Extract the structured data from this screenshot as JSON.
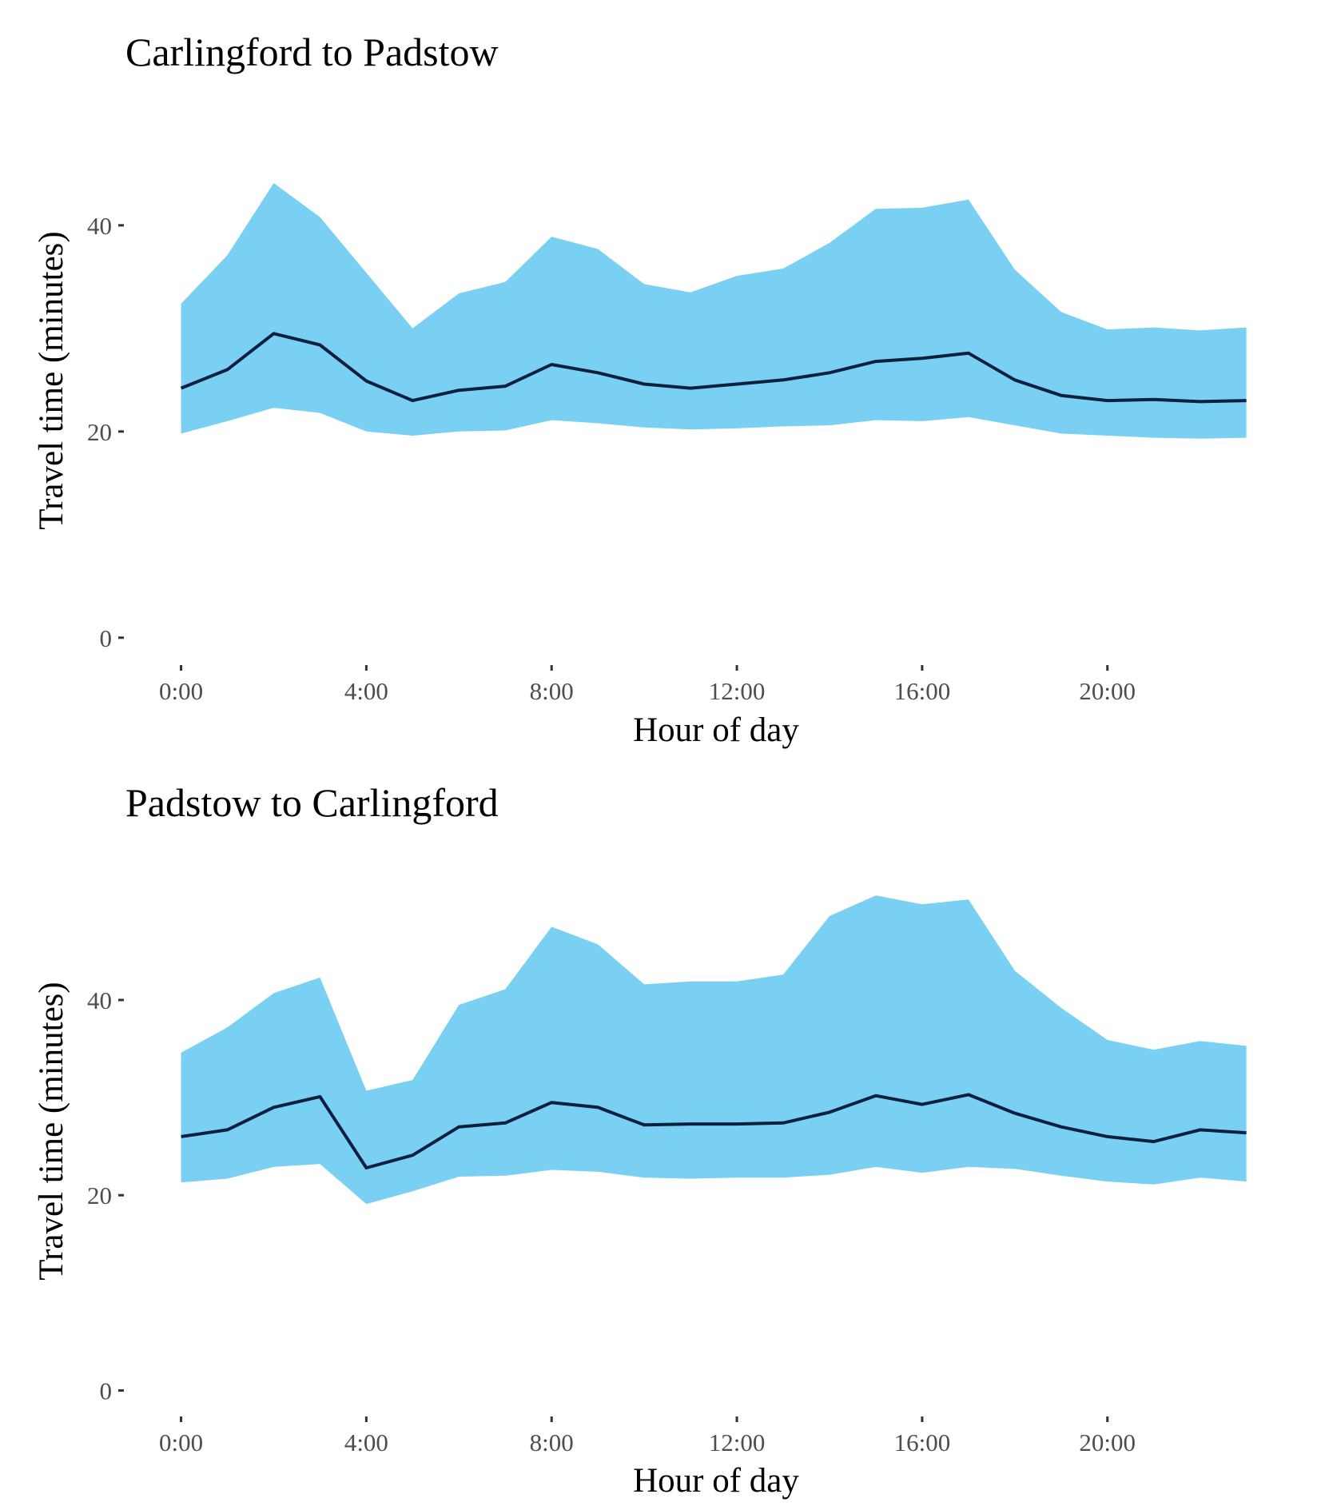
{
  "chart_data": [
    {
      "type": "area",
      "title": "Carlingford to Padstow",
      "xlabel": "Hour of day",
      "ylabel": "Travel time (minutes)",
      "x": [
        0,
        1,
        2,
        3,
        4,
        5,
        6,
        7,
        8,
        9,
        10,
        11,
        12,
        13,
        14,
        15,
        16,
        17,
        18,
        19,
        20,
        21,
        22,
        23
      ],
      "xticks": [
        0,
        4,
        8,
        12,
        16,
        20
      ],
      "xtick_labels": [
        "0:00",
        "4:00",
        "8:00",
        "12:00",
        "16:00",
        "20:00"
      ],
      "yticks": [
        0,
        20,
        40
      ],
      "ytick_labels": [
        "0",
        "20",
        "40"
      ],
      "xlim": [
        -1.2,
        23.3
      ],
      "ylim": [
        -2.5,
        51
      ],
      "grid": false,
      "colors": {
        "band": "#79d0f3",
        "line": "#0b1f3f"
      },
      "series": [
        {
          "role": "upper",
          "values": [
            32.4,
            37.1,
            44.1,
            40.8,
            35.4,
            30.0,
            33.4,
            34.5,
            38.9,
            37.7,
            34.3,
            33.5,
            35.1,
            35.8,
            38.3,
            41.6,
            41.7,
            42.5,
            35.7,
            31.6,
            29.9,
            30.1,
            29.8,
            30.1
          ]
        },
        {
          "role": "median",
          "values": [
            24.2,
            26.0,
            29.5,
            28.4,
            24.9,
            23.0,
            24.0,
            24.4,
            26.5,
            25.7,
            24.6,
            24.2,
            24.6,
            25.0,
            25.7,
            26.8,
            27.1,
            27.6,
            25.0,
            23.5,
            23.0,
            23.1,
            22.9,
            23.0
          ]
        },
        {
          "role": "lower",
          "values": [
            19.8,
            21.0,
            22.3,
            21.8,
            20.0,
            19.6,
            20.0,
            20.1,
            21.1,
            20.8,
            20.4,
            20.2,
            20.3,
            20.5,
            20.6,
            21.1,
            21.0,
            21.4,
            20.6,
            19.8,
            19.6,
            19.4,
            19.3,
            19.4
          ]
        }
      ]
    },
    {
      "type": "area",
      "title": "Padstow to Carlingford",
      "xlabel": "Hour of day",
      "ylabel": "Travel time (minutes)",
      "x": [
        0,
        1,
        2,
        3,
        4,
        5,
        6,
        7,
        8,
        9,
        10,
        11,
        12,
        13,
        14,
        15,
        16,
        17,
        18,
        19,
        20,
        21,
        22,
        23
      ],
      "xticks": [
        0,
        4,
        8,
        12,
        16,
        20
      ],
      "xtick_labels": [
        "0:00",
        "4:00",
        "8:00",
        "12:00",
        "16:00",
        "20:00"
      ],
      "yticks": [
        0,
        20,
        40
      ],
      "ytick_labels": [
        "0",
        "20",
        "40"
      ],
      "xlim": [
        -1.2,
        23.3
      ],
      "ylim": [
        -2.5,
        54
      ],
      "grid": false,
      "colors": {
        "band": "#79d0f3",
        "line": "#0b1f3f"
      },
      "series": [
        {
          "role": "upper",
          "values": [
            34.6,
            37.2,
            40.7,
            42.3,
            30.7,
            31.8,
            39.5,
            41.1,
            47.5,
            45.7,
            41.6,
            41.9,
            41.9,
            42.6,
            48.6,
            50.7,
            49.8,
            50.3,
            43.0,
            39.2,
            35.9,
            34.9,
            35.8,
            35.3
          ]
        },
        {
          "role": "median",
          "values": [
            26.0,
            26.7,
            29.0,
            30.1,
            22.8,
            24.1,
            27.0,
            27.4,
            29.5,
            29.0,
            27.2,
            27.3,
            27.3,
            27.4,
            28.5,
            30.2,
            29.3,
            30.3,
            28.4,
            27.0,
            26.0,
            25.5,
            26.7,
            26.4
          ]
        },
        {
          "role": "lower",
          "values": [
            21.3,
            21.7,
            22.9,
            23.2,
            19.1,
            20.4,
            21.9,
            22.0,
            22.6,
            22.4,
            21.8,
            21.7,
            21.8,
            21.8,
            22.1,
            22.9,
            22.3,
            22.9,
            22.7,
            22.0,
            21.4,
            21.1,
            21.8,
            21.4
          ]
        }
      ]
    }
  ]
}
